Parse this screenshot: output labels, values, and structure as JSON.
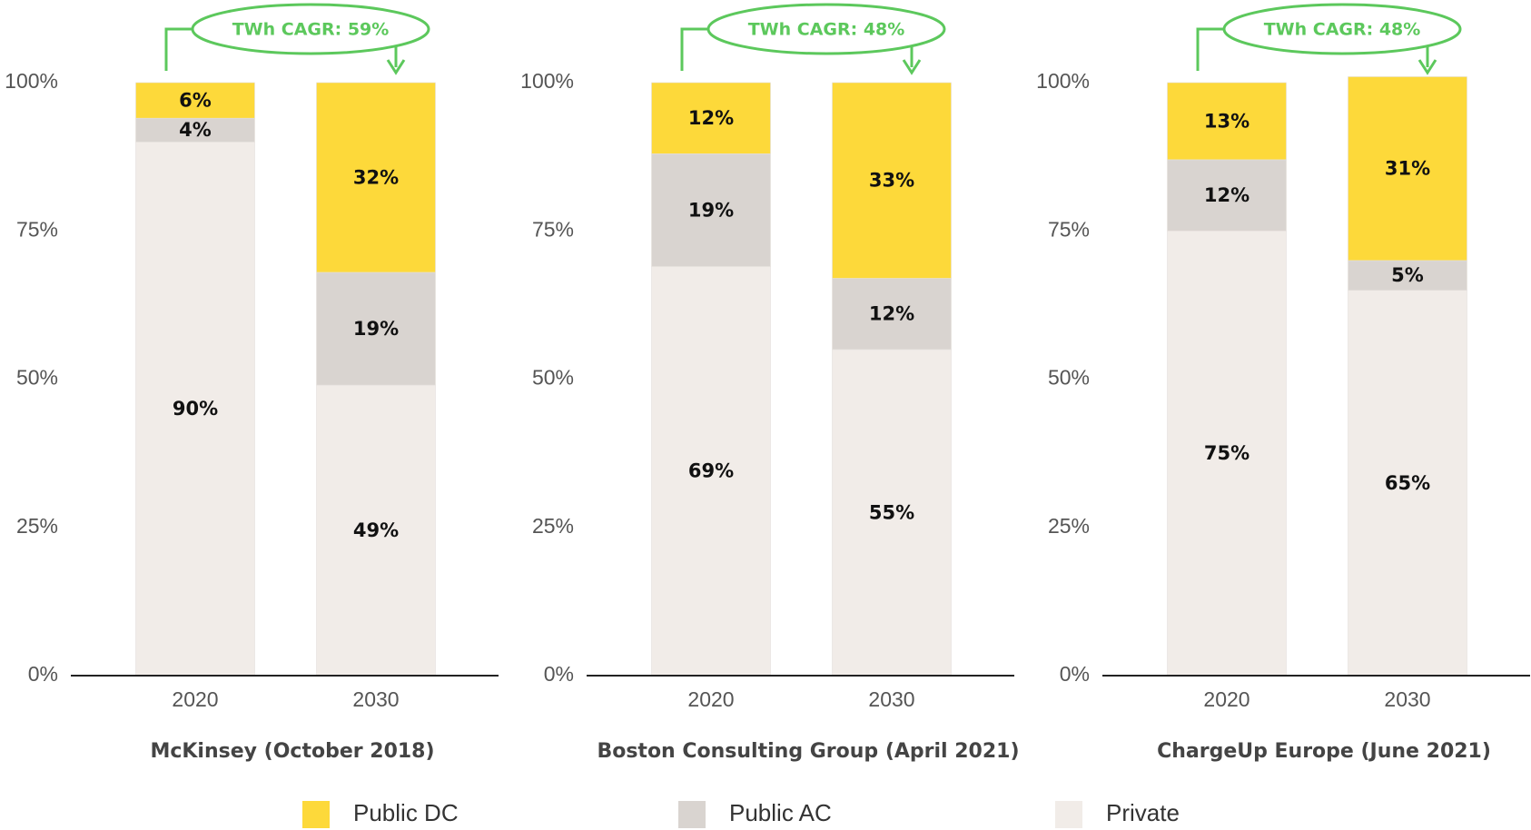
{
  "chart_data": [
    {
      "type": "bar",
      "stacked": true,
      "title": "McKinsey (October 2018)",
      "annotation": "TWh CAGR: 59%",
      "categories": [
        "2020",
        "2030"
      ],
      "series": [
        {
          "name": "Private",
          "color": "#f1ece8",
          "values": [
            90,
            49
          ],
          "value_labels": [
            "90%",
            "49%"
          ]
        },
        {
          "name": "Public AC",
          "color": "#d9d4d0",
          "values": [
            4,
            19
          ],
          "value_labels": [
            "4%",
            "19%"
          ]
        },
        {
          "name": "Public DC",
          "color": "#fdd93a",
          "values": [
            6,
            32
          ],
          "value_labels": [
            "6%",
            "32%"
          ]
        }
      ],
      "ylim": [
        0,
        100
      ],
      "yticks": [
        {
          "value": 0,
          "label": "0%"
        },
        {
          "value": 25,
          "label": "25%"
        },
        {
          "value": 50,
          "label": "50%"
        },
        {
          "value": 75,
          "label": "75%"
        },
        {
          "value": 100,
          "label": "100%"
        }
      ]
    },
    {
      "type": "bar",
      "stacked": true,
      "title": "Boston Consulting Group (April 2021)",
      "annotation": "TWh CAGR: 48%",
      "categories": [
        "2020",
        "2030"
      ],
      "series": [
        {
          "name": "Private",
          "color": "#f1ece8",
          "values": [
            69,
            55
          ],
          "value_labels": [
            "69%",
            "55%"
          ]
        },
        {
          "name": "Public AC",
          "color": "#d9d4d0",
          "values": [
            19,
            12
          ],
          "value_labels": [
            "19%",
            "12%"
          ]
        },
        {
          "name": "Public DC",
          "color": "#fdd93a",
          "values": [
            12,
            33
          ],
          "value_labels": [
            "12%",
            "33%"
          ]
        }
      ],
      "ylim": [
        0,
        100
      ],
      "yticks": [
        {
          "value": 0,
          "label": "0%"
        },
        {
          "value": 25,
          "label": "25%"
        },
        {
          "value": 50,
          "label": "50%"
        },
        {
          "value": 75,
          "label": "75%"
        },
        {
          "value": 100,
          "label": "100%"
        }
      ]
    },
    {
      "type": "bar",
      "stacked": true,
      "title": "ChargeUp Europe (June 2021)",
      "annotation": "TWh CAGR: 48%",
      "categories": [
        "2020",
        "2030"
      ],
      "series": [
        {
          "name": "Private",
          "color": "#f1ece8",
          "values": [
            75,
            65
          ],
          "value_labels": [
            "75%",
            "65%"
          ]
        },
        {
          "name": "Public AC",
          "color": "#d9d4d0",
          "values": [
            12,
            5
          ],
          "value_labels": [
            "12%",
            "5%"
          ]
        },
        {
          "name": "Public DC",
          "color": "#fdd93a",
          "values": [
            13,
            31
          ],
          "value_labels": [
            "13%",
            "31%"
          ]
        }
      ],
      "ylim": [
        0,
        100
      ],
      "yticks": [
        {
          "value": 0,
          "label": "0%"
        },
        {
          "value": 25,
          "label": "25%"
        },
        {
          "value": 50,
          "label": "50%"
        },
        {
          "value": 75,
          "label": "75%"
        },
        {
          "value": 100,
          "label": "100%"
        }
      ]
    }
  ]
}
